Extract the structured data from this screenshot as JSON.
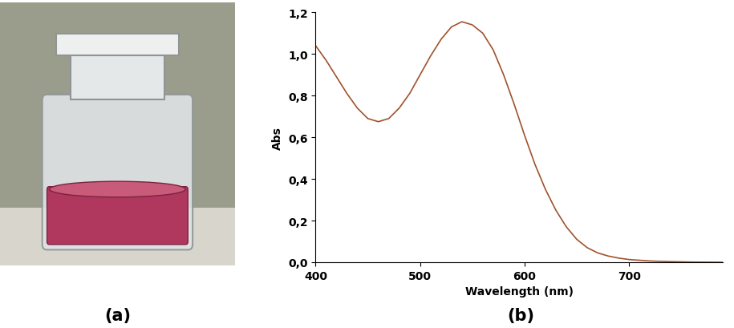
{
  "panel_labels": [
    "(a)",
    "(b)"
  ],
  "chart_data": {
    "type": "line",
    "x_label": "Wavelength (nm)",
    "y_label": "Abs",
    "x": [
      400,
      410,
      420,
      430,
      440,
      450,
      460,
      470,
      480,
      490,
      500,
      510,
      520,
      530,
      540,
      550,
      560,
      570,
      580,
      590,
      600,
      610,
      620,
      630,
      640,
      650,
      660,
      670,
      680,
      690,
      700,
      720,
      740,
      760,
      790
    ],
    "series": [
      {
        "name": "Abs",
        "color": "#a0522d",
        "values": [
          1.04,
          0.97,
          0.89,
          0.81,
          0.74,
          0.69,
          0.675,
          0.69,
          0.74,
          0.81,
          0.9,
          0.99,
          1.07,
          1.13,
          1.155,
          1.14,
          1.1,
          1.02,
          0.9,
          0.76,
          0.61,
          0.47,
          0.35,
          0.25,
          0.17,
          0.11,
          0.07,
          0.045,
          0.03,
          0.02,
          0.013,
          0.006,
          0.003,
          0.001,
          0.0
        ]
      }
    ],
    "xlim": [
      400,
      790
    ],
    "xticks": [
      400,
      500,
      600,
      700
    ],
    "ylim": [
      0,
      1.2
    ],
    "yticks": [
      {
        "value": 0,
        "label": "0,0"
      },
      {
        "value": 0.2,
        "label": "0,2"
      },
      {
        "value": 0.4,
        "label": "0,4"
      },
      {
        "value": 0.6,
        "label": "0,6"
      },
      {
        "value": 0.8,
        "label": "0,8"
      },
      {
        "value": 1.0,
        "label": "1,0"
      },
      {
        "value": 1.2,
        "label": "1,2"
      }
    ],
    "grid": false
  }
}
